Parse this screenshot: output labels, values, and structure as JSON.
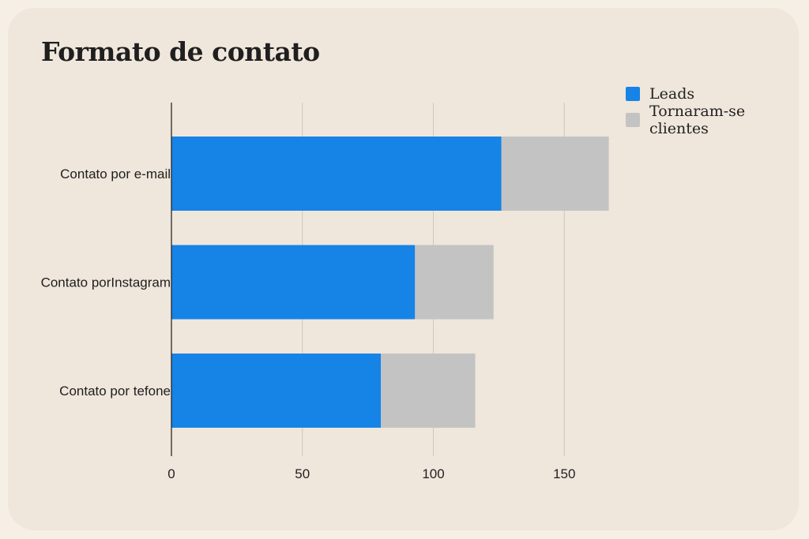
{
  "chart_data": {
    "type": "bar",
    "orientation": "horizontal",
    "stacked": true,
    "title": "Formato de contato",
    "xlabel": "",
    "ylabel": "",
    "categories": [
      "Contato por e-mail",
      "Contato porInstagram",
      "Contato por tefone"
    ],
    "series": [
      {
        "name": "Leads",
        "values": [
          126,
          93,
          80
        ],
        "color": "#1683e7"
      },
      {
        "name": "Tornaram-se clientes",
        "values": [
          41,
          30,
          36
        ],
        "color": "#c3c3c3"
      }
    ],
    "xlim": [
      0,
      170
    ],
    "xticks": [
      0,
      50,
      100,
      150
    ],
    "grid": true,
    "legend_position": "top-right"
  }
}
